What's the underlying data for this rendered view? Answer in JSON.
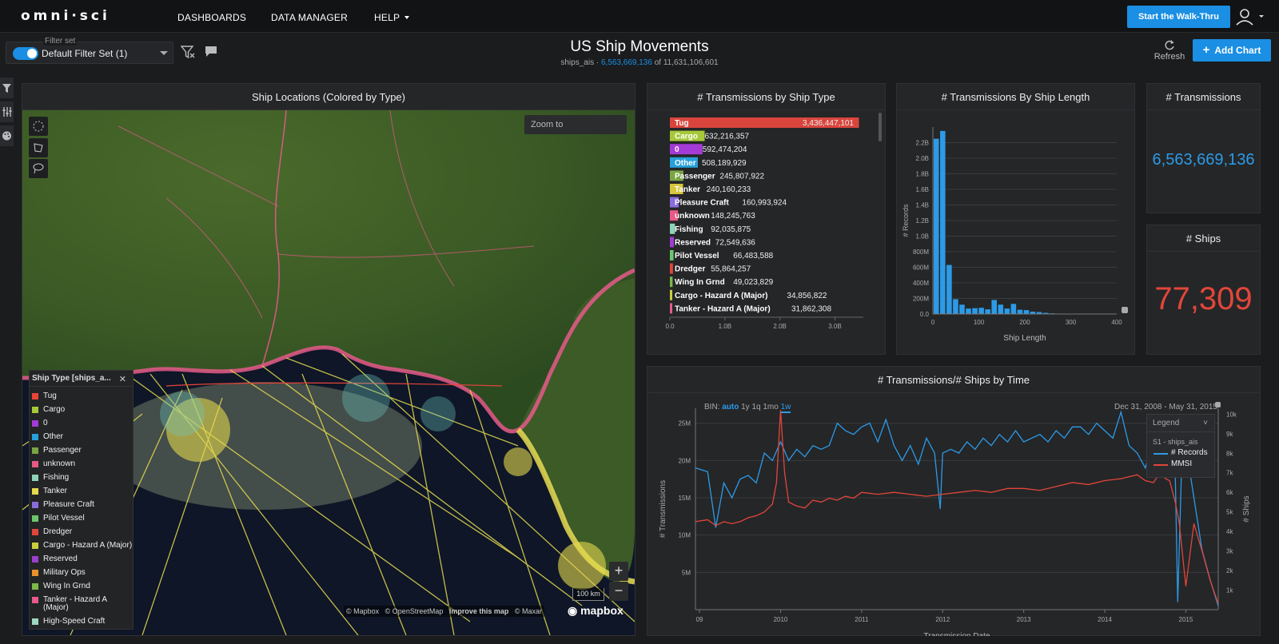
{
  "nav": {
    "logo": "omni·sci",
    "items": [
      "DASHBOARDS",
      "DATA MANAGER",
      "HELP"
    ],
    "walkthru": "Start the Walk-Thru"
  },
  "toolbar": {
    "filterset_label": "Filter set",
    "filterset_value": "Default Filter Set (1)",
    "title": "US Ship Movements",
    "table": "ships_ais",
    "sep": " · ",
    "filtered_count": "6,563,669,136",
    "of": " of ",
    "total_count": "11,631,106,601",
    "refresh": "Refresh",
    "add_chart": "Add Chart"
  },
  "map": {
    "title": "Ship Locations (Colored by Type)",
    "zoom_to": "Zoom to",
    "scale": "100 km",
    "attribution": [
      "© Mapbox",
      "© OpenStreetMap",
      "Improve this map",
      "© Maxar"
    ],
    "logo": "mapbox",
    "legend": {
      "title": "Ship Type [ships_a...",
      "items": [
        {
          "label": "Tug",
          "color": "#e8443a"
        },
        {
          "label": "Cargo",
          "color": "#a6c93a"
        },
        {
          "label": "0",
          "color": "#a43bd6"
        },
        {
          "label": "Other",
          "color": "#27a1d9"
        },
        {
          "label": "Passenger",
          "color": "#7aa545"
        },
        {
          "label": "unknown",
          "color": "#e75a85"
        },
        {
          "label": "Fishing",
          "color": "#8ed3b8"
        },
        {
          "label": "Tanker",
          "color": "#e5d94f"
        },
        {
          "label": "Pleasure Craft",
          "color": "#8a6ddb"
        },
        {
          "label": "Pilot Vessel",
          "color": "#6cc66c"
        },
        {
          "label": "Dredger",
          "color": "#e0463d"
        },
        {
          "label": "Cargo - Hazard A (Major)",
          "color": "#c9ce3d"
        },
        {
          "label": "Reserved",
          "color": "#9b3fcf"
        },
        {
          "label": "Military Ops",
          "color": "#e8902a"
        },
        {
          "label": "Wing In Grnd",
          "color": "#7bb94a"
        },
        {
          "label": "Tanker - Hazard A (Major)",
          "color": "#e75a8d"
        },
        {
          "label": "High-Speed Craft",
          "color": "#9ed6c1"
        }
      ]
    }
  },
  "chart_data": [
    {
      "type": "bar",
      "title": "# Transmissions by Ship Type",
      "orientation": "horizontal",
      "xlim": [
        0,
        3400000000
      ],
      "x_ticks": [
        "0.0",
        "1.0B",
        "2.0B",
        "3.0B"
      ],
      "categories": [
        "Tug",
        "Cargo",
        "0",
        "Other",
        "Passenger",
        "Tanker",
        "Pleasure Craft",
        "unknown",
        "Fishing",
        "Reserved",
        "Pilot Vessel",
        "Dredger",
        "Wing In Grnd",
        "Cargo - Hazard A (Major)",
        "Tanker - Hazard A (Major)"
      ],
      "values": [
        3436447101,
        632216357,
        592474204,
        508189929,
        245807922,
        240160233,
        160993924,
        148245763,
        92035875,
        72549636,
        66483588,
        55864257,
        49023829,
        34856822,
        31862308
      ],
      "labels": [
        "3,436,447,101",
        "632,216,357",
        "592,474,204",
        "508,189,929",
        "245,807,922",
        "240,160,233",
        "160,993,924",
        "148,245,763",
        "92,035,875",
        "72,549,636",
        "66,483,588",
        "55,864,257",
        "49,023,829",
        "34,856,822",
        "31,862,308"
      ],
      "colors": [
        "#d9453d",
        "#a6c93a",
        "#a43bd6",
        "#27a1d9",
        "#7aa545",
        "#d6c63d",
        "#8a6ddb",
        "#e75a85",
        "#8ed3b8",
        "#9b3fcf",
        "#6cc66c",
        "#e0463d",
        "#7bb94a",
        "#c9ce3d",
        "#e75a8d"
      ]
    },
    {
      "type": "bar",
      "title": "# Transmissions By Ship Length",
      "xlabel": "Ship Length",
      "ylabel": "# Records",
      "xlim": [
        0,
        400
      ],
      "ylim": [
        0,
        2400000000
      ],
      "x_ticks": [
        "0",
        "100",
        "200",
        "300",
        "400"
      ],
      "y_ticks": [
        "0.0",
        "200M",
        "400M",
        "600M",
        "800M",
        "1.0B",
        "1.2B",
        "1.4B",
        "1.6B",
        "1.8B",
        "2.0B",
        "2.2B"
      ],
      "x": [
        0,
        14,
        28,
        42,
        56,
        70,
        84,
        98,
        112,
        126,
        140,
        154,
        168,
        182,
        196,
        210,
        224,
        238,
        252,
        266,
        280,
        294,
        308
      ],
      "values": [
        2250000000,
        2350000000,
        630000000,
        190000000,
        120000000,
        70000000,
        75000000,
        80000000,
        60000000,
        180000000,
        120000000,
        70000000,
        130000000,
        55000000,
        50000000,
        30000000,
        25000000,
        15000000,
        8000000,
        5000000,
        3000000,
        2000000,
        1000000
      ]
    },
    {
      "type": "line",
      "title": "# Transmissions/# Ships by Time",
      "xlabel": "Transmission Date",
      "ylabel": "# Transmissions",
      "y2label": "# Ships",
      "date_range": "Dec 31, 2008 - May 31, 2015",
      "bin_label": "BIN:",
      "bins": [
        "auto",
        "1y",
        "1q",
        "1mo",
        "1w"
      ],
      "x_ticks": [
        "09",
        "2010",
        "2011",
        "2012",
        "2013",
        "2014",
        "2015"
      ],
      "x_tick_years": [
        2009,
        2010,
        2011,
        2012,
        2013,
        2014,
        2015
      ],
      "y_ticks": [
        "5M",
        "10M",
        "15M",
        "20M",
        "25M"
      ],
      "y_tick_values": [
        5000000,
        10000000,
        15000000,
        20000000,
        25000000
      ],
      "y2_ticks": [
        "1k",
        "2k",
        "3k",
        "4k",
        "5k",
        "6k",
        "7k",
        "8k",
        "9k",
        "10k"
      ],
      "ylim": [
        0,
        27000000
      ],
      "y2lim": [
        0,
        10300
      ],
      "xlim": [
        2008.95,
        2015.4
      ],
      "legend_title": "Legend",
      "legend_group": "S1 - ships_ais",
      "series": [
        {
          "name": "# Records",
          "color": "#2b9be8",
          "x": [
            2008.95,
            2009.1,
            2009.2,
            2009.3,
            2009.4,
            2009.5,
            2009.6,
            2009.7,
            2009.8,
            2009.9,
            2010.0,
            2010.1,
            2010.2,
            2010.3,
            2010.4,
            2010.5,
            2010.6,
            2010.7,
            2010.8,
            2010.9,
            2011.0,
            2011.1,
            2011.2,
            2011.3,
            2011.4,
            2011.5,
            2011.6,
            2011.7,
            2011.8,
            2011.9,
            2011.97,
            2012.0,
            2012.1,
            2012.2,
            2012.3,
            2012.4,
            2012.5,
            2012.6,
            2012.7,
            2012.8,
            2012.9,
            2013.0,
            2013.1,
            2013.2,
            2013.3,
            2013.4,
            2013.5,
            2013.6,
            2013.7,
            2013.8,
            2013.9,
            2014.0,
            2014.1,
            2014.2,
            2014.3,
            2014.4,
            2014.5,
            2014.6,
            2014.7,
            2014.8,
            2014.87,
            2014.9,
            2014.95,
            2015.0,
            2015.1,
            2015.2,
            2015.3,
            2015.4
          ],
          "values": [
            19000000,
            18500000,
            11000000,
            17000000,
            15000000,
            17500000,
            18000000,
            17000000,
            21000000,
            20000000,
            22500000,
            20000000,
            21500000,
            20500000,
            22000000,
            21500000,
            22000000,
            25000000,
            24000000,
            23500000,
            24500000,
            25000000,
            22500000,
            25500000,
            22000000,
            20000000,
            22000000,
            19500000,
            23000000,
            21000000,
            13500000,
            21000000,
            21500000,
            21000000,
            22500000,
            21500000,
            23000000,
            22000000,
            23500000,
            22500000,
            24000000,
            22500000,
            23000000,
            23500000,
            22500000,
            24000000,
            23000000,
            24500000,
            24500000,
            23500000,
            25000000,
            24000000,
            23000000,
            26500000,
            22000000,
            21000000,
            19000000,
            23000000,
            25000000,
            21000000,
            18000000,
            1000000,
            20000000,
            22000000,
            15000000,
            8000000,
            4000000,
            500000
          ]
        },
        {
          "name": "MMSI",
          "color": "#e2463a",
          "x": [
            2008.95,
            2009.1,
            2009.2,
            2009.3,
            2009.4,
            2009.5,
            2009.6,
            2009.7,
            2009.8,
            2009.9,
            2009.95,
            2010.0,
            2010.05,
            2010.1,
            2010.2,
            2010.3,
            2010.4,
            2010.5,
            2010.6,
            2010.7,
            2010.8,
            2010.9,
            2011.0,
            2011.2,
            2011.4,
            2011.6,
            2011.8,
            2012.0,
            2012.2,
            2012.4,
            2012.6,
            2012.8,
            2013.0,
            2013.2,
            2013.4,
            2013.6,
            2013.8,
            2014.0,
            2014.2,
            2014.4,
            2014.5,
            2014.6,
            2014.65,
            2014.7,
            2014.75,
            2014.8,
            2014.87,
            2014.92,
            2015.0,
            2015.1,
            2015.2,
            2015.3,
            2015.4
          ],
          "values": [
            4500,
            4600,
            4300,
            4500,
            4400,
            4500,
            4700,
            4800,
            5000,
            5400,
            6500,
            10200,
            7000,
            5500,
            5300,
            5200,
            5600,
            5500,
            5700,
            5600,
            5800,
            5700,
            6000,
            5900,
            6000,
            5900,
            5800,
            5900,
            6000,
            6100,
            6000,
            6200,
            6200,
            6100,
            6300,
            6500,
            6400,
            6600,
            6700,
            6900,
            6600,
            6500,
            6800,
            6900,
            6700,
            6600,
            5500,
            4400,
            1200,
            4400,
            3000,
            1500,
            300
          ]
        }
      ]
    }
  ],
  "kpis": {
    "transmissions": {
      "title": "# Transmissions",
      "value": "6,563,669,136"
    },
    "ships": {
      "title": "# Ships",
      "value": "77,309"
    }
  }
}
